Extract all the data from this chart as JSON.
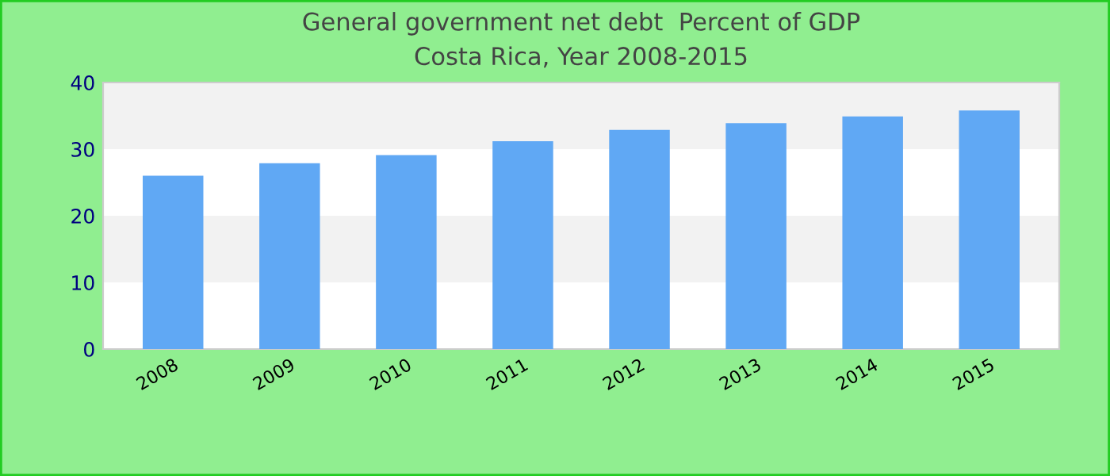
{
  "chart_data": {
    "type": "bar",
    "title": "General government net debt  Percent of GDP\nCosta Rica, Year 2008-2015",
    "categories": [
      "2008",
      "2009",
      "2010",
      "2011",
      "2012",
      "2013",
      "2014",
      "2015"
    ],
    "values": [
      26,
      27.9,
      29.1,
      31.2,
      32.9,
      33.9,
      34.9,
      35.8
    ],
    "color": "#60a8f4",
    "ylim": [
      0,
      40
    ],
    "yticks": [
      0,
      10,
      20,
      30,
      40
    ],
    "grid": false,
    "legend": false
  }
}
